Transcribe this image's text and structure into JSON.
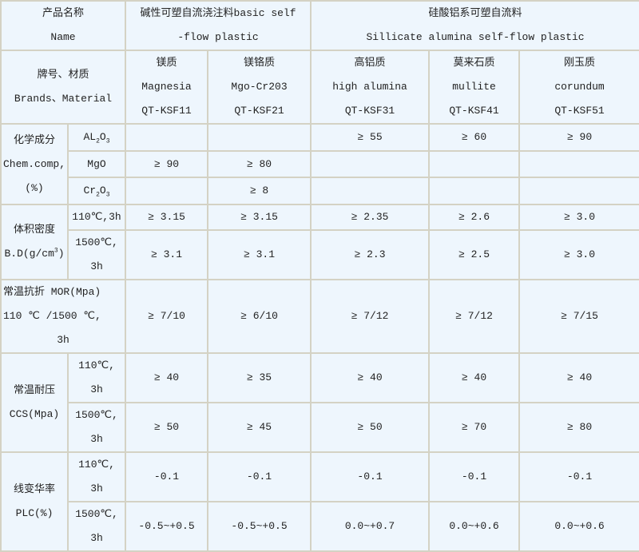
{
  "header": {
    "product_name_cn": "产品名称",
    "product_name_en": "Name",
    "basic_cn": "碱性可塑自流浇注料basic self",
    "basic_en": "-flow plastic",
    "silicate_cn": "硅酸铝系可塑自流料",
    "silicate_en": "Sillicate alumina self-flow plastic"
  },
  "brand_row": {
    "label_cn": "牌号、材质",
    "label_en": "Brands、Material",
    "products": [
      {
        "cn": "镁质",
        "en": "Magnesia",
        "code": "QT-KSF11"
      },
      {
        "cn": "镁铬质",
        "en": "Mgo-Cr203",
        "code": "QT-KSF21"
      },
      {
        "cn": "高铝质",
        "en": "high alumina",
        "code": "QT-KSF31"
      },
      {
        "cn": "莫来石质",
        "en": "mullite",
        "code": "QT-KSF41"
      },
      {
        "cn": "刚玉质",
        "en": "corundum",
        "code": "QT-KSF51"
      }
    ]
  },
  "chem": {
    "label_cn": "化学成分",
    "label_en": "Chem.comp,",
    "label_unit": "(%)",
    "rows": [
      {
        "sub_a": "AL",
        "sub_n1": "2",
        "sub_b": "O",
        "sub_n2": "3",
        "values": [
          "",
          "",
          "≥ 55",
          "≥ 60",
          "≥ 90"
        ]
      },
      {
        "label": "MgO",
        "values": [
          "≥ 90",
          "≥ 80",
          "",
          "",
          ""
        ]
      },
      {
        "sub_a": "Cr",
        "sub_n1": "2",
        "sub_b": "O",
        "sub_n2": "3",
        "values": [
          "",
          "≥ 8",
          "",
          "",
          ""
        ]
      }
    ]
  },
  "density": {
    "label_cn": "体积密度",
    "label_en": "B.D(g/cm",
    "label_sup": "3",
    "label_close": ")",
    "rows": [
      {
        "cond1": "110℃,3h",
        "cond2": "",
        "values": [
          "≥ 3.15",
          "≥ 3.15",
          "≥ 2.35",
          "≥ 2.6",
          "≥ 3.0"
        ]
      },
      {
        "cond1": "1500℃,",
        "cond2": "3h",
        "values": [
          "≥ 3.1",
          "≥ 3.1",
          "≥ 2.3",
          "≥ 2.5",
          "≥ 3.0"
        ]
      }
    ]
  },
  "mor": {
    "label_1": "常温抗折 MOR(Mpa)",
    "label_2": "110 ℃ /1500 ℃,",
    "label_3": "3h",
    "values": [
      "≥ 7/10",
      "≥ 6/10",
      "≥ 7/12",
      "≥ 7/12",
      "≥ 7/15"
    ]
  },
  "ccs": {
    "label_cn": "常温耐压",
    "label_en": "CCS(Mpa)",
    "rows": [
      {
        "cond1": "110℃,",
        "cond2": "3h",
        "values": [
          "≥ 40",
          "≥ 35",
          "≥ 40",
          "≥ 40",
          "≥ 40"
        ]
      },
      {
        "cond1": "1500℃,",
        "cond2": "3h",
        "values": [
          "≥ 50",
          "≥ 45",
          "≥ 50",
          "≥ 70",
          "≥ 80"
        ]
      }
    ]
  },
  "plc": {
    "label_cn": "线变华率",
    "label_en": "PLC(%)",
    "rows": [
      {
        "cond1": "110℃,",
        "cond2": "3h",
        "values": [
          "-0.1",
          "-0.1",
          "-0.1",
          "-0.1",
          "-0.1"
        ]
      },
      {
        "cond1": "1500℃,",
        "cond2": "3h",
        "values": [
          "-0.5~+0.5",
          "-0.5~+0.5",
          "0.0~+0.7",
          "0.0~+0.6",
          "0.0~+0.6"
        ]
      }
    ]
  }
}
